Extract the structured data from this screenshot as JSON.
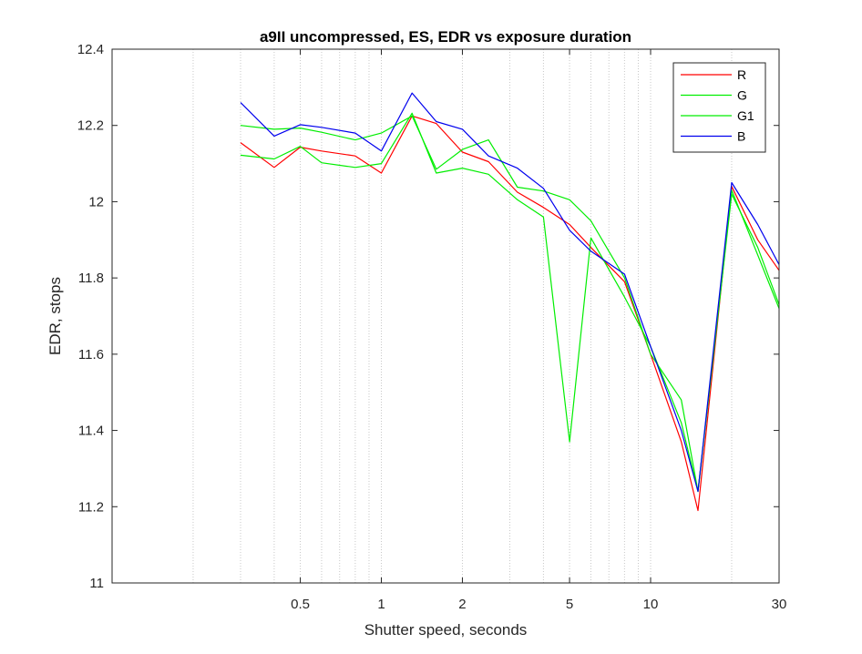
{
  "chart_data": {
    "type": "line",
    "title": "a9II uncompressed, ES, EDR vs exposure duration",
    "xlabel": "Shutter speed, seconds",
    "ylabel": "EDR, stops",
    "xscale": "log",
    "xlim": [
      0.1,
      30
    ],
    "ylim": [
      11,
      12.4
    ],
    "xticks": [
      0.5,
      1,
      2,
      5,
      10,
      30
    ],
    "xtick_labels": [
      "0.5",
      "1",
      "2",
      "5",
      "10",
      "30"
    ],
    "yticks": [
      11,
      11.2,
      11.4,
      11.6,
      11.8,
      12,
      12.2,
      12.4
    ],
    "ytick_labels": [
      "11",
      "11.2",
      "11.4",
      "11.6",
      "11.8",
      "12",
      "12.2",
      "12.4"
    ],
    "grid": "x-minor-dotted",
    "legend_position": "top-right",
    "x": [
      0.3,
      0.4,
      0.5,
      0.6,
      0.8,
      1,
      1.3,
      1.6,
      2,
      2.5,
      3.2,
      4,
      5,
      6,
      8,
      10,
      13,
      15,
      20,
      25,
      30
    ],
    "series": [
      {
        "name": "R",
        "color": "#ff0000",
        "values": [
          12.155,
          12.09,
          12.143,
          12.133,
          12.12,
          12.075,
          12.225,
          12.205,
          12.13,
          12.105,
          12.025,
          11.985,
          11.94,
          11.88,
          11.79,
          11.6,
          11.37,
          11.19,
          12.04,
          11.9,
          11.82
        ]
      },
      {
        "name": "G",
        "color": "#00ee00",
        "values": [
          12.2,
          12.19,
          12.193,
          12.182,
          12.162,
          12.18,
          12.225,
          12.085,
          12.137,
          12.162,
          12.038,
          12.028,
          12.005,
          11.95,
          11.8,
          11.6,
          11.48,
          11.24,
          12.02,
          11.88,
          11.73
        ]
      },
      {
        "name": "G1",
        "color": "#00ee00",
        "values": [
          12.122,
          12.112,
          12.145,
          12.102,
          12.09,
          12.1,
          12.232,
          12.075,
          12.088,
          12.072,
          12.005,
          11.96,
          11.37,
          11.905,
          11.75,
          11.62,
          11.42,
          11.24,
          12.03,
          11.86,
          11.72
        ]
      },
      {
        "name": "B",
        "color": "#0000ee",
        "values": [
          12.26,
          12.172,
          12.202,
          12.195,
          12.18,
          12.133,
          12.285,
          12.21,
          12.19,
          12.12,
          12.088,
          12.035,
          11.925,
          11.87,
          11.81,
          11.62,
          11.4,
          11.24,
          12.05,
          11.94,
          11.835
        ]
      }
    ]
  }
}
